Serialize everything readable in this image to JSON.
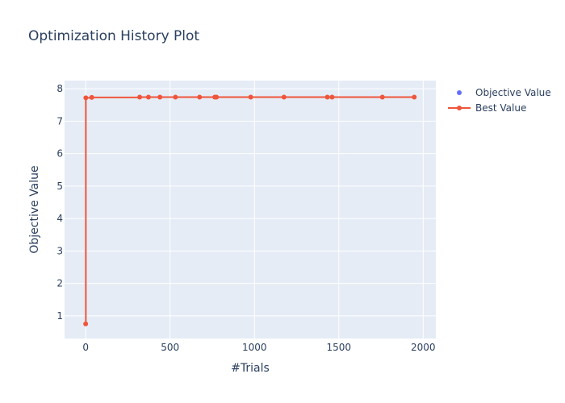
{
  "chart_data": {
    "type": "line",
    "title": "Optimization History Plot",
    "xlabel": "#Trials",
    "ylabel": "Objective Value",
    "xlim": [
      -125,
      2075
    ],
    "ylim": [
      0.3,
      8.25
    ],
    "xticks": [
      0,
      500,
      1000,
      1500,
      2000
    ],
    "yticks": [
      1,
      2,
      3,
      4,
      5,
      6,
      7,
      8
    ],
    "grid": true,
    "legend": "top-right",
    "colors": {
      "plot_bg": "#e5ecf6",
      "grid": "#ffffff",
      "objective": "#636efa",
      "best": "#ef553b"
    },
    "series": [
      {
        "name": "Objective Value",
        "mode": "markers",
        "points": []
      },
      {
        "name": "Best Value",
        "mode": "lines+markers",
        "points": [
          [
            0,
            0.75
          ],
          [
            1,
            7.72
          ],
          [
            36,
            7.73
          ],
          [
            320,
            7.74
          ],
          [
            372,
            7.74
          ],
          [
            440,
            7.74
          ],
          [
            532,
            7.74
          ],
          [
            675,
            7.74
          ],
          [
            765,
            7.74
          ],
          [
            775,
            7.74
          ],
          [
            978,
            7.74
          ],
          [
            1175,
            7.74
          ],
          [
            1432,
            7.74
          ],
          [
            1460,
            7.74
          ],
          [
            1758,
            7.74
          ],
          [
            1947,
            7.74
          ]
        ]
      }
    ]
  }
}
